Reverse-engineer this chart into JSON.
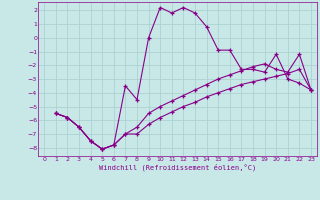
{
  "xlabel": "Windchill (Refroidissement éolien,°C)",
  "background_color": "#c8e8e8",
  "grid_color": "#a8cece",
  "line_color": "#880088",
  "xlim": [
    -0.5,
    23.5
  ],
  "ylim": [
    -8.6,
    2.6
  ],
  "yticks": [
    2,
    1,
    0,
    -1,
    -2,
    -3,
    -4,
    -5,
    -6,
    -7,
    -8
  ],
  "xticks": [
    0,
    1,
    2,
    3,
    4,
    5,
    6,
    7,
    8,
    9,
    10,
    11,
    12,
    13,
    14,
    15,
    16,
    17,
    18,
    19,
    20,
    21,
    22,
    23
  ],
  "s1_x": [
    1,
    2,
    3,
    4,
    5,
    6,
    7,
    8,
    9,
    10,
    11,
    12,
    13,
    14,
    15,
    16,
    17,
    18,
    19,
    20,
    21,
    22,
    23
  ],
  "s1_y": [
    -5.5,
    -5.8,
    -6.5,
    -7.5,
    -8.1,
    -7.8,
    -3.5,
    -4.5,
    0.0,
    2.2,
    1.8,
    2.2,
    1.8,
    0.8,
    -0.9,
    -0.9,
    -2.3,
    -2.3,
    -2.5,
    -1.2,
    -3.0,
    -3.3,
    -3.8
  ],
  "s2_x": [
    1,
    2,
    3,
    4,
    5,
    6,
    7,
    8,
    9,
    10,
    11,
    12,
    13,
    14,
    15,
    16,
    17,
    18,
    19,
    20,
    21,
    22,
    23
  ],
  "s2_y": [
    -5.5,
    -5.8,
    -6.5,
    -7.5,
    -8.1,
    -7.8,
    -7.0,
    -6.5,
    -5.5,
    -5.0,
    -4.6,
    -4.2,
    -3.8,
    -3.4,
    -3.0,
    -2.7,
    -2.4,
    -2.1,
    -1.9,
    -2.3,
    -2.5,
    -1.2,
    -3.8
  ],
  "s3_x": [
    1,
    2,
    3,
    4,
    5,
    6,
    7,
    8,
    9,
    10,
    11,
    12,
    13,
    14,
    15,
    16,
    17,
    18,
    19,
    20,
    21,
    22,
    23
  ],
  "s3_y": [
    -5.5,
    -5.8,
    -6.5,
    -7.5,
    -8.1,
    -7.8,
    -7.0,
    -7.0,
    -6.3,
    -5.8,
    -5.4,
    -5.0,
    -4.7,
    -4.3,
    -4.0,
    -3.7,
    -3.4,
    -3.2,
    -3.0,
    -2.8,
    -2.6,
    -2.3,
    -3.8
  ]
}
